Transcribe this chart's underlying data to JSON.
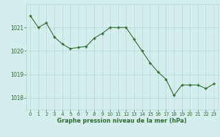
{
  "hours": [
    0,
    1,
    2,
    3,
    4,
    5,
    6,
    7,
    8,
    9,
    10,
    11,
    12,
    13,
    14,
    15,
    16,
    17,
    18,
    19,
    20,
    21,
    22,
    23
  ],
  "pressure": [
    1021.5,
    1021.0,
    1021.2,
    1020.6,
    1020.3,
    1020.1,
    1020.15,
    1020.2,
    1020.55,
    1020.75,
    1021.0,
    1021.0,
    1021.0,
    1020.5,
    1020.0,
    1019.5,
    1019.1,
    1018.8,
    1018.1,
    1018.55,
    1018.55,
    1018.55,
    1018.4,
    1018.6
  ],
  "line_color": "#2d6a2d",
  "marker": "+",
  "marker_size": 3,
  "marker_linewidth": 1.0,
  "line_width": 0.8,
  "bg_color": "#d4eeee",
  "grid_color": "#b8d4d4",
  "xlabel": "Graphe pression niveau de la mer (hPa)",
  "xlabel_color": "#2d6a2d",
  "tick_color": "#2d6a2d",
  "ylim": [
    1017.5,
    1022.0
  ],
  "yticks": [
    1018,
    1019,
    1020,
    1021
  ],
  "xlim": [
    -0.5,
    23.5
  ],
  "xticks": [
    0,
    1,
    2,
    3,
    4,
    5,
    6,
    7,
    8,
    9,
    10,
    11,
    12,
    13,
    14,
    15,
    16,
    17,
    18,
    19,
    20,
    21,
    22,
    23
  ],
  "xlabel_fontsize": 6.0,
  "xtick_fontsize": 5.0,
  "ytick_fontsize": 5.5
}
